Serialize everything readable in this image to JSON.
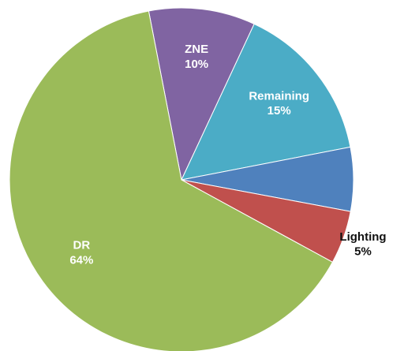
{
  "chart_data": {
    "type": "pie",
    "categories": [
      "ZNE",
      "Remaining",
      null,
      "Lighting",
      "DR"
    ],
    "values": [
      10,
      15,
      6,
      5,
      64
    ],
    "value_labels": [
      "10%",
      "15%",
      null,
      "5%",
      "64%"
    ],
    "colors": [
      "#8064a2",
      "#4bacc6",
      "#4f81bd",
      "#c0504d",
      "#9bbb59"
    ]
  }
}
